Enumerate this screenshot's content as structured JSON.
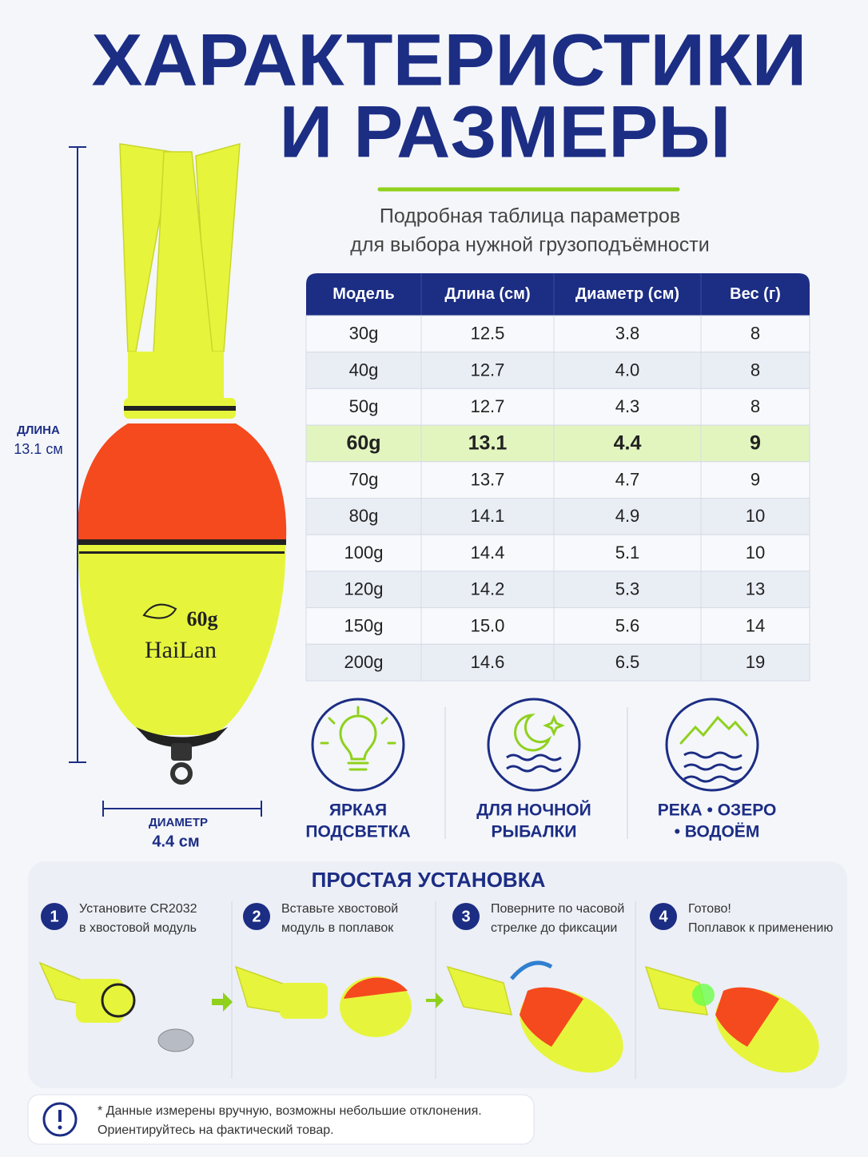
{
  "header": {
    "title_line1": "ХАРАКТЕРИСТИКИ",
    "title_line2": "И РАЗМЕРЫ",
    "subtitle_line1": "Подробная таблица параметров",
    "subtitle_line2": "для выбора нужной грузоподъёмности"
  },
  "dimensions": {
    "length_label": "ДЛИНА",
    "length_value": "13.1 см",
    "diameter_label": "ДИАМЕТР",
    "diameter_value": "4.4 см"
  },
  "product_print": {
    "model": "60g",
    "brand": "HaiLan"
  },
  "table": {
    "columns": [
      "Модель",
      "Длина (см)",
      "Диаметр (см)",
      "Вес (г)"
    ],
    "rows": [
      [
        "30g",
        "12.5",
        "3.8",
        "8"
      ],
      [
        "40g",
        "12.7",
        "4.0",
        "8"
      ],
      [
        "50g",
        "12.7",
        "4.3",
        "8"
      ],
      [
        "60g",
        "13.1",
        "4.4",
        "9"
      ],
      [
        "70g",
        "13.7",
        "4.7",
        "9"
      ],
      [
        "80g",
        "14.1",
        "4.9",
        "10"
      ],
      [
        "100g",
        "14.4",
        "5.1",
        "10"
      ],
      [
        "120g",
        "14.2",
        "5.3",
        "13"
      ],
      [
        "150g",
        "15.0",
        "5.6",
        "14"
      ],
      [
        "200g",
        "14.6",
        "6.5",
        "19"
      ]
    ],
    "highlighted_row": 3
  },
  "features": [
    {
      "line1": "ЯРКАЯ",
      "line2": "ПОДСВЕТКА"
    },
    {
      "line1": "ДЛЯ НОЧНОЙ",
      "line2": "РЫБАЛКИ"
    },
    {
      "line1": "РЕКА • ОЗЕРО",
      "line2": "• ВОДОЁМ"
    }
  ],
  "installation": {
    "title": "ПРОСТАЯ УСТАНОВКА",
    "steps": [
      {
        "number": "1",
        "line1": "Установите CR2032",
        "line2": "в хвостовой модуль"
      },
      {
        "number": "2",
        "line1": "Вставьте хвостовой",
        "line2": "модуль в поплавок"
      },
      {
        "number": "3",
        "line1": "Поверните по часовой",
        "line2": "стрелке до фиксации"
      },
      {
        "number": "4",
        "line1": "Готово!",
        "line2": "Поплавок к применению"
      }
    ]
  },
  "note": {
    "line1": "* Данные измерены вручную, возможны небольшие отклонения.",
    "line2": "Ориентируйтесь на фактический товар."
  }
}
